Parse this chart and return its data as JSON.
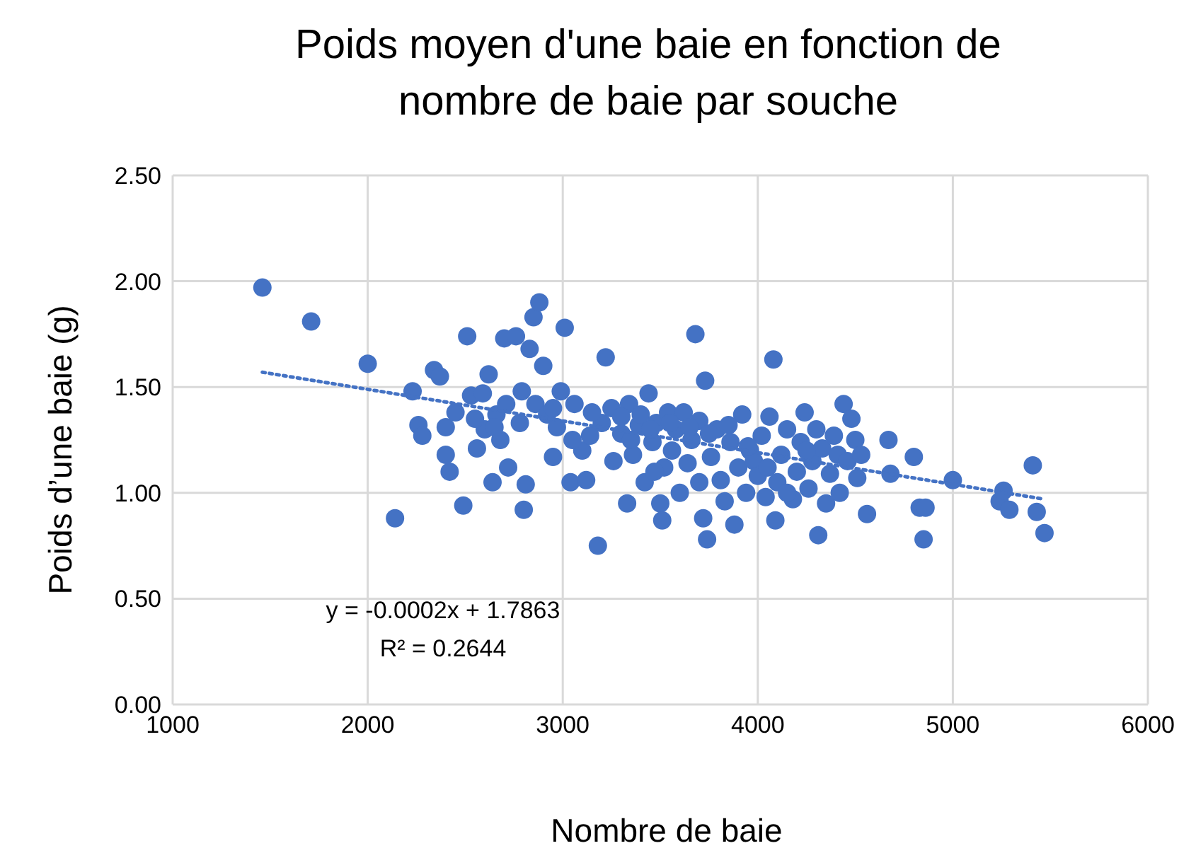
{
  "chart_data": {
    "type": "scatter",
    "title": "Poids moyen d'une baie en fonction de nombre de baie par souche",
    "xlabel": "Nombre de baie",
    "ylabel": "Poids d’une baie (g)",
    "xlim": [
      1000,
      6000
    ],
    "xticks": [
      1000,
      2000,
      3000,
      4000,
      5000,
      6000
    ],
    "ylim": [
      0,
      2.5
    ],
    "yticks": [
      {
        "value": 0,
        "label": "0.00"
      },
      {
        "value": 0.5,
        "label": "0.50"
      },
      {
        "value": 1,
        "label": "1.00"
      },
      {
        "value": 1.5,
        "label": "1.50"
      },
      {
        "value": 2,
        "label": "2.00"
      },
      {
        "value": 2.5,
        "label": "2.50"
      }
    ],
    "grid": true,
    "annotations": [
      "y = -0.0002x + 1.7863",
      "R² = 0.2644"
    ],
    "series": [
      {
        "color": "#4472c4",
        "marker": "circle",
        "x": [
          1460,
          1710,
          2000,
          2140,
          2230,
          2260,
          2280,
          2340,
          2370,
          2400,
          2400,
          2420,
          2450,
          2490,
          2510,
          2530,
          2560,
          2590,
          2600,
          2620,
          2640,
          2660,
          2680,
          2700,
          2710,
          2720,
          2760,
          2780,
          2790,
          2800,
          2810,
          2830,
          2850,
          2880,
          2860,
          2900,
          2920,
          2950,
          2970,
          2990,
          3010,
          3040,
          3060,
          3100,
          3120,
          3140,
          3180,
          3200,
          3220,
          3250,
          3260,
          3300,
          3330,
          3340,
          3360,
          3390,
          3400,
          3420,
          3440,
          3460,
          3480,
          3500,
          3510,
          3520,
          3540,
          3560,
          3580,
          3600,
          3620,
          3640,
          3660,
          3680,
          3700,
          3720,
          3730,
          3740,
          3760,
          3790,
          3810,
          3830,
          3860,
          3880,
          3900,
          3920,
          3940,
          3960,
          3980,
          4000,
          4020,
          4040,
          4060,
          4080,
          4090,
          4100,
          4120,
          4150,
          4180,
          4200,
          4220,
          4240,
          4260,
          4280,
          4300,
          4310,
          4330,
          4350,
          4370,
          4390,
          4410,
          4420,
          4440,
          4460,
          4480,
          4500,
          4510,
          4530,
          4560,
          4670,
          4680,
          4800,
          4830,
          4850,
          4860,
          5000,
          5240,
          5260,
          5290,
          5410,
          5430,
          5470,
          3300,
          3350,
          3450,
          3550,
          3650,
          3750,
          3850,
          3950,
          4050,
          3150,
          3050,
          2950,
          2650,
          2550,
          3470,
          3700,
          4150,
          4250
        ],
        "values": [
          1.97,
          1.81,
          1.61,
          0.88,
          1.48,
          1.32,
          1.27,
          1.58,
          1.55,
          1.31,
          1.18,
          1.1,
          1.38,
          0.94,
          1.74,
          1.46,
          1.21,
          1.47,
          1.3,
          1.56,
          1.05,
          1.37,
          1.25,
          1.73,
          1.42,
          1.12,
          1.74,
          1.33,
          1.48,
          0.92,
          1.04,
          1.68,
          1.83,
          1.9,
          1.42,
          1.6,
          1.37,
          1.17,
          1.31,
          1.48,
          1.78,
          1.05,
          1.42,
          1.2,
          1.06,
          1.27,
          0.75,
          1.33,
          1.64,
          1.4,
          1.15,
          1.28,
          0.95,
          1.42,
          1.18,
          1.32,
          1.37,
          1.05,
          1.47,
          1.24,
          1.33,
          0.95,
          0.87,
          1.12,
          1.38,
          1.2,
          1.3,
          1.0,
          1.38,
          1.14,
          1.25,
          1.75,
          1.34,
          0.88,
          1.53,
          0.78,
          1.17,
          1.3,
          1.06,
          0.96,
          1.24,
          0.85,
          1.12,
          1.37,
          1.0,
          1.2,
          1.15,
          1.08,
          1.27,
          0.98,
          1.36,
          1.63,
          0.87,
          1.05,
          1.18,
          1.3,
          0.97,
          1.1,
          1.24,
          1.38,
          1.02,
          1.15,
          1.3,
          0.8,
          1.21,
          0.95,
          1.09,
          1.27,
          1.18,
          1.0,
          1.42,
          1.15,
          1.35,
          1.25,
          1.07,
          1.18,
          0.9,
          1.25,
          1.09,
          1.17,
          0.93,
          0.78,
          0.93,
          1.06,
          0.96,
          1.01,
          0.92,
          1.13,
          0.91,
          0.81,
          1.36,
          1.25,
          1.3,
          1.33,
          1.31,
          1.28,
          1.32,
          1.22,
          1.12,
          1.38,
          1.25,
          1.4,
          1.31,
          1.35,
          1.1,
          1.05,
          1.0,
          1.2
        ]
      },
      {
        "type": "line",
        "color": "#4472c4",
        "marker": "none",
        "line_style": "dotted",
        "x": [
          1460,
          5470
        ],
        "values": [
          1.57,
          0.97
        ]
      }
    ]
  }
}
